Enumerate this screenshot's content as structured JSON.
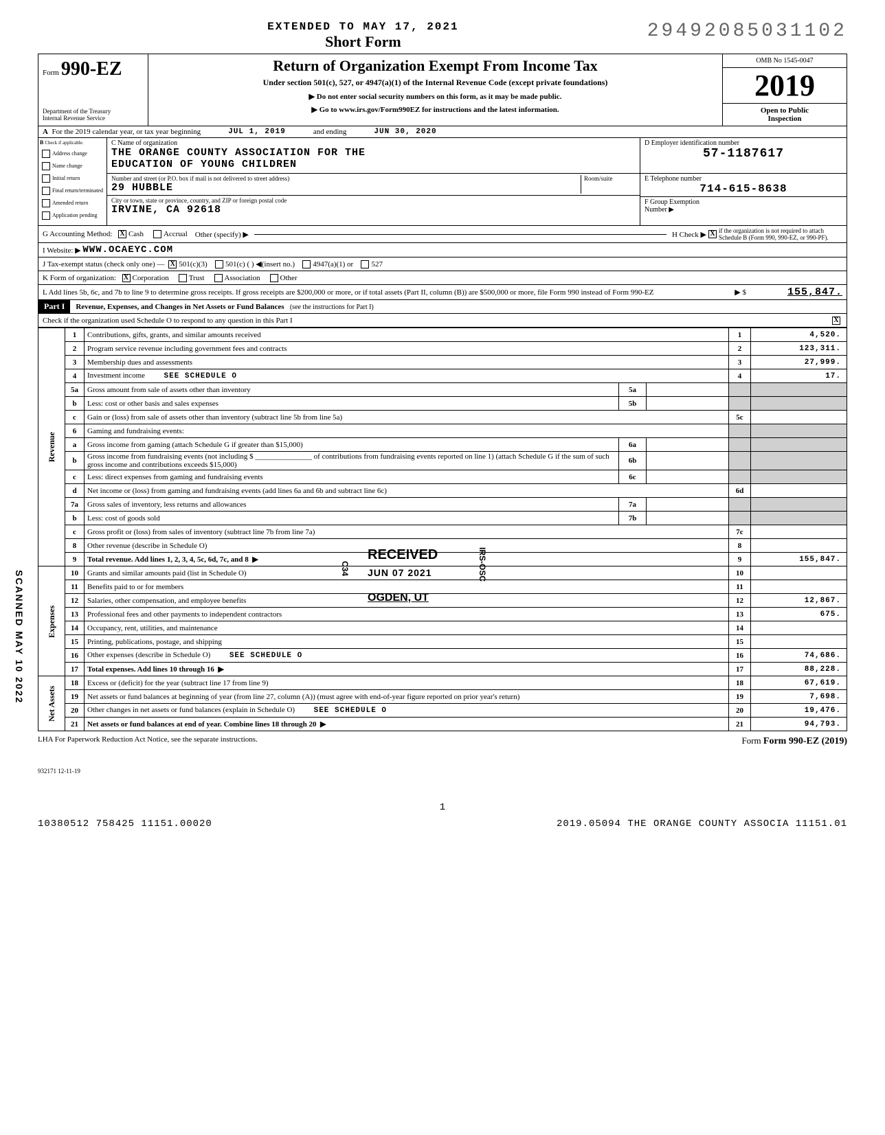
{
  "header": {
    "dln": "29492085031102",
    "extended": "EXTENDED TO MAY 17, 2021",
    "short_form": "Short Form",
    "form_prefix": "Form",
    "form_number": "990-EZ",
    "main_title": "Return of Organization Exempt From Income Tax",
    "subtitle": "Under section 501(c), 527, or 4947(a)(1) of the Internal Revenue Code (except private foundations)",
    "warn1": "▶ Do not enter social security numbers on this form, as it may be made public.",
    "warn2": "▶ Go to www.irs.gov/Form990EZ for instructions and the latest information.",
    "dept1": "Department of the Treasury",
    "dept2": "Internal Revenue Service",
    "omb": "OMB No 1545-0047",
    "year": "2019",
    "open": "Open to Public",
    "inspection": "Inspection"
  },
  "row_a": {
    "label_a": "A",
    "text": "For the 2019 calendar year, or tax year beginning",
    "begin": "JUL 1, 2019",
    "and_ending": "and ending",
    "end": "JUN 30, 2020"
  },
  "entity": {
    "b_label": "B",
    "check_if": "Check if applicable.",
    "flags": [
      "Address change",
      "Name change",
      "Initial return",
      "Final return/terminated",
      "Amended return",
      "Application pending"
    ],
    "c_label": "C Name of organization",
    "name1": "THE ORANGE COUNTY ASSOCIATION FOR THE",
    "name2": "EDUCATION OF YOUNG CHILDREN",
    "street_label": "Number and street (or P.O. box if mail is not delivered to street address)",
    "street": "29 HUBBLE",
    "room_label": "Room/suite",
    "city_label": "City or town, state or province, country, and ZIP or foreign postal code",
    "city": "IRVINE, CA  92618",
    "d_label": "D Employer identification number",
    "ein": "57-1187617",
    "e_label": "E Telephone number",
    "phone": "714-615-8638",
    "f_label": "F Group Exemption",
    "f_label2": "Number ▶"
  },
  "lines_gk": {
    "g": "G  Accounting Method:",
    "g_cash": "Cash",
    "g_accrual": "Accrual",
    "g_other": "Other (specify) ▶",
    "h": "H Check ▶",
    "h_text": "if the organization is not required to attach Schedule B (Form 990, 990-EZ, or 990-PF).",
    "i": "I   Website: ▶",
    "website": "WWW.OCAEYC.COM",
    "j": "J  Tax-exempt status (check only one) —",
    "j_501c3": "501(c)(3)",
    "j_501c": "501(c) (        ) ◀(insert no.)",
    "j_4947": "4947(a)(1) or",
    "j_527": "527",
    "k": "K  Form of organization:",
    "k_corp": "Corporation",
    "k_trust": "Trust",
    "k_assoc": "Association",
    "k_other": "Other",
    "l": "L  Add lines 5b, 6c, and 7b to line 9 to determine gross receipts. If gross receipts are $200,000 or more, or if total assets (Part II, column (B)) are $500,000 or more, file Form 990 instead of Form 990-EZ",
    "l_arrow": "▶ $",
    "l_amt": "155,847."
  },
  "part1": {
    "label": "Part I",
    "title": "Revenue, Expenses, and Changes in Net Assets or Fund Balances",
    "see": "(see the instructions for Part I)",
    "check_o": "Check if the organization used Schedule O to respond to any question in this Part I",
    "check_o_marked": "X"
  },
  "sections": {
    "revenue": "Revenue",
    "expenses": "Expenses",
    "netassets": "Net Assets"
  },
  "rows": [
    {
      "n": "1",
      "desc": "Contributions, gifts, grants, and similar amounts received",
      "ln": "1",
      "amt": "4,520."
    },
    {
      "n": "2",
      "desc": "Program service revenue including government fees and contracts",
      "ln": "2",
      "amt": "123,311."
    },
    {
      "n": "3",
      "desc": "Membership dues and assessments",
      "ln": "3",
      "amt": "27,999."
    },
    {
      "n": "4",
      "desc": "Investment income",
      "extra": "SEE SCHEDULE O",
      "ln": "4",
      "amt": "17."
    },
    {
      "n": "5a",
      "desc": "Gross amount from sale of assets other than inventory",
      "sub": "5a",
      "subval": ""
    },
    {
      "n": "b",
      "desc": "Less: cost or other basis and sales expenses",
      "sub": "5b",
      "subval": ""
    },
    {
      "n": "c",
      "desc": "Gain or (loss) from sale of assets other than inventory (subtract line 5b from line 5a)",
      "ln": "5c",
      "amt": ""
    },
    {
      "n": "6",
      "desc": "Gaming and fundraising events:",
      "shaded_right": true
    },
    {
      "n": "a",
      "desc": "Gross income from gaming (attach Schedule G if greater than $15,000)",
      "sub": "6a",
      "subval": ""
    },
    {
      "n": "b",
      "desc": "Gross income from fundraising events (not including $ _______________ of contributions from fundraising events reported on line 1) (attach Schedule G if the sum of such gross income and contributions exceeds $15,000)",
      "sub": "6b",
      "subval": ""
    },
    {
      "n": "c",
      "desc": "Less: direct expenses from gaming and fundraising events",
      "sub": "6c",
      "subval": ""
    },
    {
      "n": "d",
      "desc": "Net income or (loss) from gaming and fundraising events (add lines 6a and 6b and subtract line 6c)",
      "ln": "6d",
      "amt": ""
    },
    {
      "n": "7a",
      "desc": "Gross sales of inventory, less returns and allowances",
      "sub": "7a",
      "subval": ""
    },
    {
      "n": "b",
      "desc": "Less: cost of goods sold",
      "sub": "7b",
      "subval": ""
    },
    {
      "n": "c",
      "desc": "Gross profit or (loss) from sales of inventory (subtract line 7b from line 7a)",
      "ln": "7c",
      "amt": ""
    },
    {
      "n": "8",
      "desc": "Other revenue (describe in Schedule O)",
      "ln": "8",
      "amt": ""
    },
    {
      "n": "9",
      "desc": "Total revenue. Add lines 1, 2, 3, 4, 5c, 6d, 7c, and 8",
      "ln": "9",
      "amt": "155,847.",
      "bold": true,
      "arrow": true
    }
  ],
  "exp_rows": [
    {
      "n": "10",
      "desc": "Grants and similar amounts paid (list in Schedule O)",
      "ln": "10",
      "amt": ""
    },
    {
      "n": "11",
      "desc": "Benefits paid to or for members",
      "ln": "11",
      "amt": ""
    },
    {
      "n": "12",
      "desc": "Salaries, other compensation, and employee benefits",
      "ln": "12",
      "amt": "12,867."
    },
    {
      "n": "13",
      "desc": "Professional fees and other payments to independent contractors",
      "ln": "13",
      "amt": "675."
    },
    {
      "n": "14",
      "desc": "Occupancy, rent, utilities, and maintenance",
      "ln": "14",
      "amt": ""
    },
    {
      "n": "15",
      "desc": "Printing, publications, postage, and shipping",
      "ln": "15",
      "amt": ""
    },
    {
      "n": "16",
      "desc": "Other expenses (describe in Schedule O)",
      "extra": "SEE SCHEDULE O",
      "ln": "16",
      "amt": "74,686."
    },
    {
      "n": "17",
      "desc": "Total expenses. Add lines 10 through 16",
      "ln": "17",
      "amt": "88,228.",
      "bold": true,
      "arrow": true
    }
  ],
  "na_rows": [
    {
      "n": "18",
      "desc": "Excess or (deficit) for the year (subtract line 17 from line 9)",
      "ln": "18",
      "amt": "67,619."
    },
    {
      "n": "19",
      "desc": "Net assets or fund balances at beginning of year (from line 27, column (A)) (must agree with end-of-year figure reported on prior year's return)",
      "ln": "19",
      "amt": "7,698."
    },
    {
      "n": "20",
      "desc": "Other changes in net assets or fund balances (explain in Schedule O)",
      "extra": "SEE SCHEDULE O",
      "ln": "20",
      "amt": "19,476."
    },
    {
      "n": "21",
      "desc": "Net assets or fund balances at end of year. Combine lines 18 through 20",
      "ln": "21",
      "amt": "94,793.",
      "bold": true,
      "arrow": true
    }
  ],
  "stamps": {
    "received": "RECEIVED",
    "received_date": "JUN 07 2021",
    "ogden": "OGDEN, UT",
    "scanned": "SCANNED MAY 10 2022",
    "irs_osc": "IRS-OSC",
    "c34": "C34"
  },
  "footer": {
    "lha": "LHA  For Paperwork Reduction Act Notice, see the separate instructions.",
    "form_ref": "Form 990-EZ (2019)",
    "rev": "932171  12-11-19",
    "page": "1",
    "bl_left": "10380512 758425 11151.00020",
    "bl_right": "2019.05094 THE ORANGE COUNTY ASSOCIA 11151.01"
  }
}
